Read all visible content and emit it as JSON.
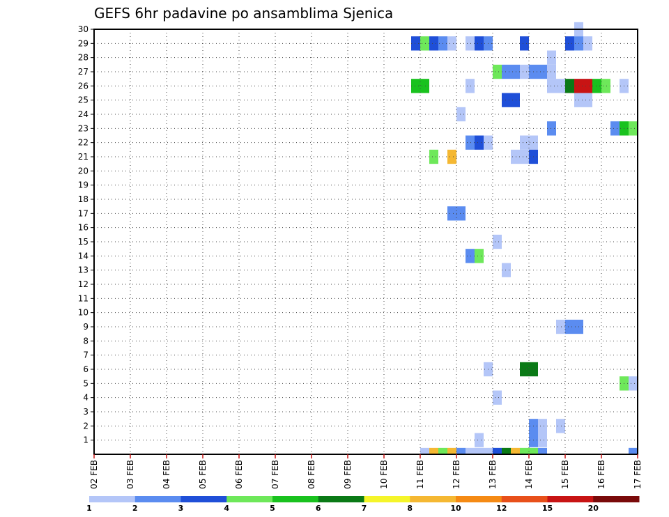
{
  "chart_data": {
    "type": "heatmap",
    "title": "GEFS 6hr padavine po ansamblima Sjenica",
    "xlabel": "",
    "ylabel": "",
    "x_ticks": [
      "02 FEB",
      "03 FEB",
      "04 FEB",
      "05 FEB",
      "06 FEB",
      "07 FEB",
      "08 FEB",
      "09 FEB",
      "10 FEB",
      "11 FEB",
      "12 FEB",
      "13 FEB",
      "14 FEB",
      "15 FEB",
      "16 FEB",
      "17 FEB"
    ],
    "y_ticks": [
      "1",
      "2",
      "3",
      "4",
      "5",
      "6",
      "7",
      "8",
      "9",
      "10",
      "11",
      "12",
      "13",
      "14",
      "15",
      "16",
      "17",
      "18",
      "19",
      "20",
      "21",
      "22",
      "23",
      "24",
      "25",
      "26",
      "27",
      "28",
      "29",
      "30"
    ],
    "xlim": [
      0,
      60
    ],
    "ylim": [
      0,
      30
    ],
    "grid": true,
    "color_scale": {
      "labels": [
        "1",
        "2",
        "3",
        "4",
        "5",
        "6",
        "7",
        "8",
        "10",
        "12",
        "15",
        "20"
      ],
      "colors": [
        "#b4c6f8",
        "#5b8cf0",
        "#1f4fd8",
        "#6ee85a",
        "#19c21e",
        "#0a7a16",
        "#f5f52a",
        "#f5b832",
        "#f58a14",
        "#e8501a",
        "#c81414",
        "#7a0a0a"
      ]
    },
    "cells": [
      {
        "x": 35,
        "y": 29,
        "v": 3
      },
      {
        "x": 36,
        "y": 29,
        "v": 4
      },
      {
        "x": 37,
        "y": 29,
        "v": 3
      },
      {
        "x": 38,
        "y": 29,
        "v": 2
      },
      {
        "x": 39,
        "y": 29,
        "v": 1
      },
      {
        "x": 41,
        "y": 29,
        "v": 1
      },
      {
        "x": 42,
        "y": 29,
        "v": 3
      },
      {
        "x": 43,
        "y": 29,
        "v": 2
      },
      {
        "x": 47,
        "y": 29,
        "v": 3
      },
      {
        "x": 53,
        "y": 30,
        "v": 1
      },
      {
        "x": 52,
        "y": 29,
        "v": 3
      },
      {
        "x": 53,
        "y": 29,
        "v": 2
      },
      {
        "x": 54,
        "y": 29,
        "v": 1
      },
      {
        "x": 50,
        "y": 28,
        "v": 1
      },
      {
        "x": 44,
        "y": 27,
        "v": 4
      },
      {
        "x": 45,
        "y": 27,
        "v": 2
      },
      {
        "x": 46,
        "y": 27,
        "v": 2
      },
      {
        "x": 47,
        "y": 27,
        "v": 1
      },
      {
        "x": 48,
        "y": 27,
        "v": 2
      },
      {
        "x": 49,
        "y": 27,
        "v": 2
      },
      {
        "x": 50,
        "y": 27,
        "v": 1
      },
      {
        "x": 35,
        "y": 26,
        "v": 5
      },
      {
        "x": 36,
        "y": 26,
        "v": 5
      },
      {
        "x": 41,
        "y": 26,
        "v": 1
      },
      {
        "x": 53,
        "y": 26,
        "v": 1
      },
      {
        "x": 54,
        "y": 26,
        "v": 1
      },
      {
        "x": 50,
        "y": 26,
        "v": 1
      },
      {
        "x": 51,
        "y": 26,
        "v": 1
      },
      {
        "x": 52,
        "y": 26,
        "v": 6
      },
      {
        "x": 53,
        "y": 26,
        "v": 15
      },
      {
        "x": 54,
        "y": 26,
        "v": 15
      },
      {
        "x": 55,
        "y": 26,
        "v": 5
      },
      {
        "x": 56,
        "y": 26,
        "v": 4
      },
      {
        "x": 58,
        "y": 26,
        "v": 1
      },
      {
        "x": 45,
        "y": 25,
        "v": 3
      },
      {
        "x": 46,
        "y": 25,
        "v": 3
      },
      {
        "x": 53,
        "y": 25,
        "v": 1
      },
      {
        "x": 54,
        "y": 25,
        "v": 1
      },
      {
        "x": 40,
        "y": 24,
        "v": 1
      },
      {
        "x": 50,
        "y": 23,
        "v": 2
      },
      {
        "x": 57,
        "y": 23,
        "v": 2
      },
      {
        "x": 58,
        "y": 23,
        "v": 5
      },
      {
        "x": 59,
        "y": 23,
        "v": 4
      },
      {
        "x": 41,
        "y": 22,
        "v": 2
      },
      {
        "x": 42,
        "y": 22,
        "v": 3
      },
      {
        "x": 43,
        "y": 22,
        "v": 1
      },
      {
        "x": 47,
        "y": 22,
        "v": 1
      },
      {
        "x": 48,
        "y": 22,
        "v": 1
      },
      {
        "x": 37,
        "y": 21,
        "v": 4
      },
      {
        "x": 39,
        "y": 21,
        "v": 8
      },
      {
        "x": 46,
        "y": 21,
        "v": 1
      },
      {
        "x": 47,
        "y": 21,
        "v": 1
      },
      {
        "x": 48,
        "y": 21,
        "v": 3
      },
      {
        "x": 39,
        "y": 17,
        "v": 2
      },
      {
        "x": 40,
        "y": 17,
        "v": 2
      },
      {
        "x": 44,
        "y": 15,
        "v": 1
      },
      {
        "x": 41,
        "y": 14,
        "v": 2
      },
      {
        "x": 42,
        "y": 14,
        "v": 4
      },
      {
        "x": 45,
        "y": 13,
        "v": 1
      },
      {
        "x": 51,
        "y": 9,
        "v": 1
      },
      {
        "x": 52,
        "y": 9,
        "v": 2
      },
      {
        "x": 53,
        "y": 9,
        "v": 2
      },
      {
        "x": 43,
        "y": 6,
        "v": 1
      },
      {
        "x": 47,
        "y": 6,
        "v": 6
      },
      {
        "x": 48,
        "y": 6,
        "v": 6
      },
      {
        "x": 58,
        "y": 5,
        "v": 4
      },
      {
        "x": 59,
        "y": 5,
        "v": 1
      },
      {
        "x": 44,
        "y": 4,
        "v": 1
      },
      {
        "x": 48,
        "y": 2,
        "v": 2
      },
      {
        "x": 49,
        "y": 2,
        "v": 1
      },
      {
        "x": 51,
        "y": 2,
        "v": 1
      },
      {
        "x": 48,
        "y": 1,
        "v": 2
      },
      {
        "x": 49,
        "y": 1,
        "v": 1
      },
      {
        "x": 42,
        "y": 1,
        "v": 1
      },
      {
        "x": 36,
        "y": 0,
        "v": 1
      },
      {
        "x": 37,
        "y": 0,
        "v": 8
      },
      {
        "x": 38,
        "y": 0,
        "v": 4
      },
      {
        "x": 39,
        "y": 0,
        "v": 8
      },
      {
        "x": 40,
        "y": 0,
        "v": 2
      },
      {
        "x": 41,
        "y": 0,
        "v": 1
      },
      {
        "x": 42,
        "y": 0,
        "v": 1
      },
      {
        "x": 43,
        "y": 0,
        "v": 1
      },
      {
        "x": 44,
        "y": 0,
        "v": 3
      },
      {
        "x": 45,
        "y": 0,
        "v": 6
      },
      {
        "x": 46,
        "y": 0,
        "v": 8
      },
      {
        "x": 47,
        "y": 0,
        "v": 4
      },
      {
        "x": 48,
        "y": 0,
        "v": 4
      },
      {
        "x": 49,
        "y": 0,
        "v": 2
      },
      {
        "x": 59,
        "y": 0,
        "v": 2
      }
    ]
  }
}
